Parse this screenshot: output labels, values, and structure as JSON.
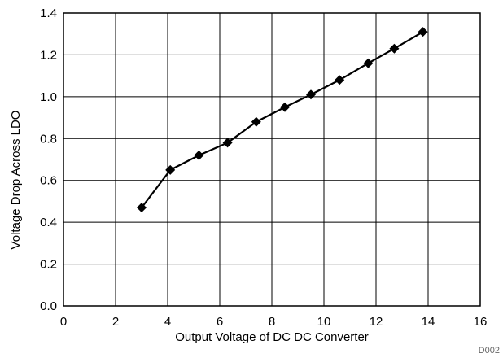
{
  "chart_data": {
    "type": "line",
    "xlabel": "Output Voltage of DC DC Converter",
    "ylabel": "Voltage Drop Across LDO",
    "xlim": [
      0,
      16
    ],
    "ylim": [
      0,
      1.4
    ],
    "xticks": [
      "0",
      "2",
      "4",
      "6",
      "8",
      "10",
      "12",
      "14",
      "16"
    ],
    "yticks": [
      "0.0",
      "0.2",
      "0.4",
      "0.6",
      "0.8",
      "1.0",
      "1.2",
      "1.4"
    ],
    "grid": true,
    "marker": "diamond",
    "series_color": "#000000",
    "series": [
      {
        "x": [
          3.0,
          4.1,
          5.2,
          6.3,
          7.4,
          8.5,
          9.5,
          10.6,
          11.7,
          12.7,
          13.8
        ],
        "y": [
          0.47,
          0.65,
          0.72,
          0.78,
          0.88,
          0.95,
          1.01,
          1.08,
          1.16,
          1.23,
          1.31
        ]
      }
    ]
  },
  "figure_id": "D002"
}
